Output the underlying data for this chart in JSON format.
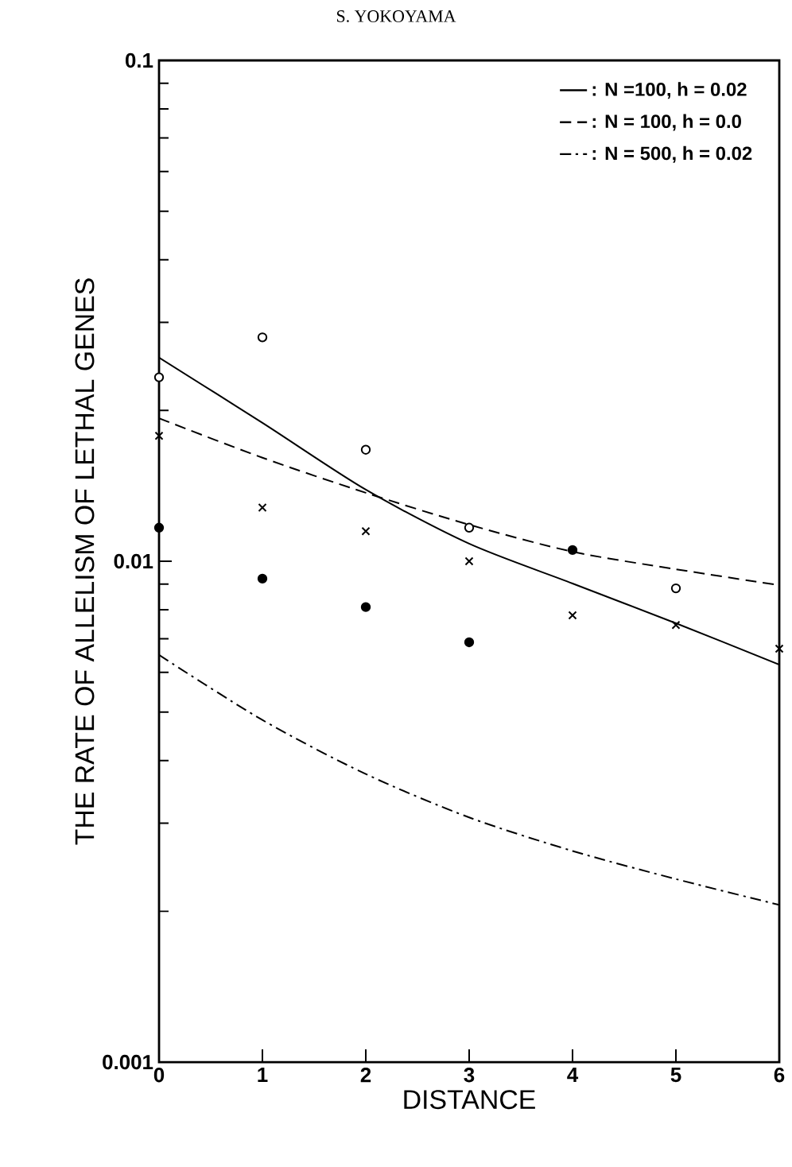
{
  "chart_data": {
    "type": "line",
    "title": "S. YOKOYAMA",
    "xlabel": "DISTANCE",
    "ylabel": "THE RATE OF ALLELISM OF LETHAL GENES",
    "x": [
      0,
      1,
      2,
      3,
      4,
      5,
      6
    ],
    "xlim": [
      0,
      6
    ],
    "xticks": [
      0,
      1,
      2,
      3,
      4,
      5,
      6
    ],
    "ylim": [
      0.001,
      0.1
    ],
    "yticks": [
      0.001,
      0.01,
      0.1
    ],
    "log": "y",
    "grid": false,
    "legend": "top right",
    "series": [
      {
        "name": ": N =100, h = 0.02",
        "color": "#000000",
        "line_style": "solid",
        "marker": "none",
        "values": [
          0.0255,
          0.0189,
          0.0139,
          0.01084,
          0.00903,
          0.00752,
          0.00622
        ]
      },
      {
        "name": ": N = 100, h = 0.0",
        "color": "#000000",
        "line_style": "dashed",
        "marker": "none",
        "values": [
          0.0193,
          0.0161,
          0.0137,
          0.01183,
          0.01045,
          0.00964,
          0.00896
        ]
      },
      {
        "name": ": N = 500, h = 0.02",
        "color": "#000000",
        "line_style": "dashdot",
        "marker": "none",
        "values": [
          0.0065,
          0.00482,
          0.00376,
          0.00308,
          0.00264,
          0.00232,
          0.00206
        ]
      },
      {
        "type": "scatter",
        "color": "#ffffff",
        "marker": "circle",
        "values": [
          0.0233,
          0.028,
          0.0167,
          0.01167,
          null,
          0.00883,
          null
        ]
      },
      {
        "type": "scatter",
        "color": "#000000",
        "marker": "circle",
        "values": [
          0.01167,
          0.00923,
          0.0081,
          0.00689,
          0.01053,
          null,
          null
        ]
      },
      {
        "type": "scatter",
        "color": "#000000",
        "marker": "cross",
        "values": [
          0.0178,
          0.0128,
          0.01148,
          0.01,
          0.0078,
          0.00746,
          0.00669
        ]
      }
    ]
  }
}
